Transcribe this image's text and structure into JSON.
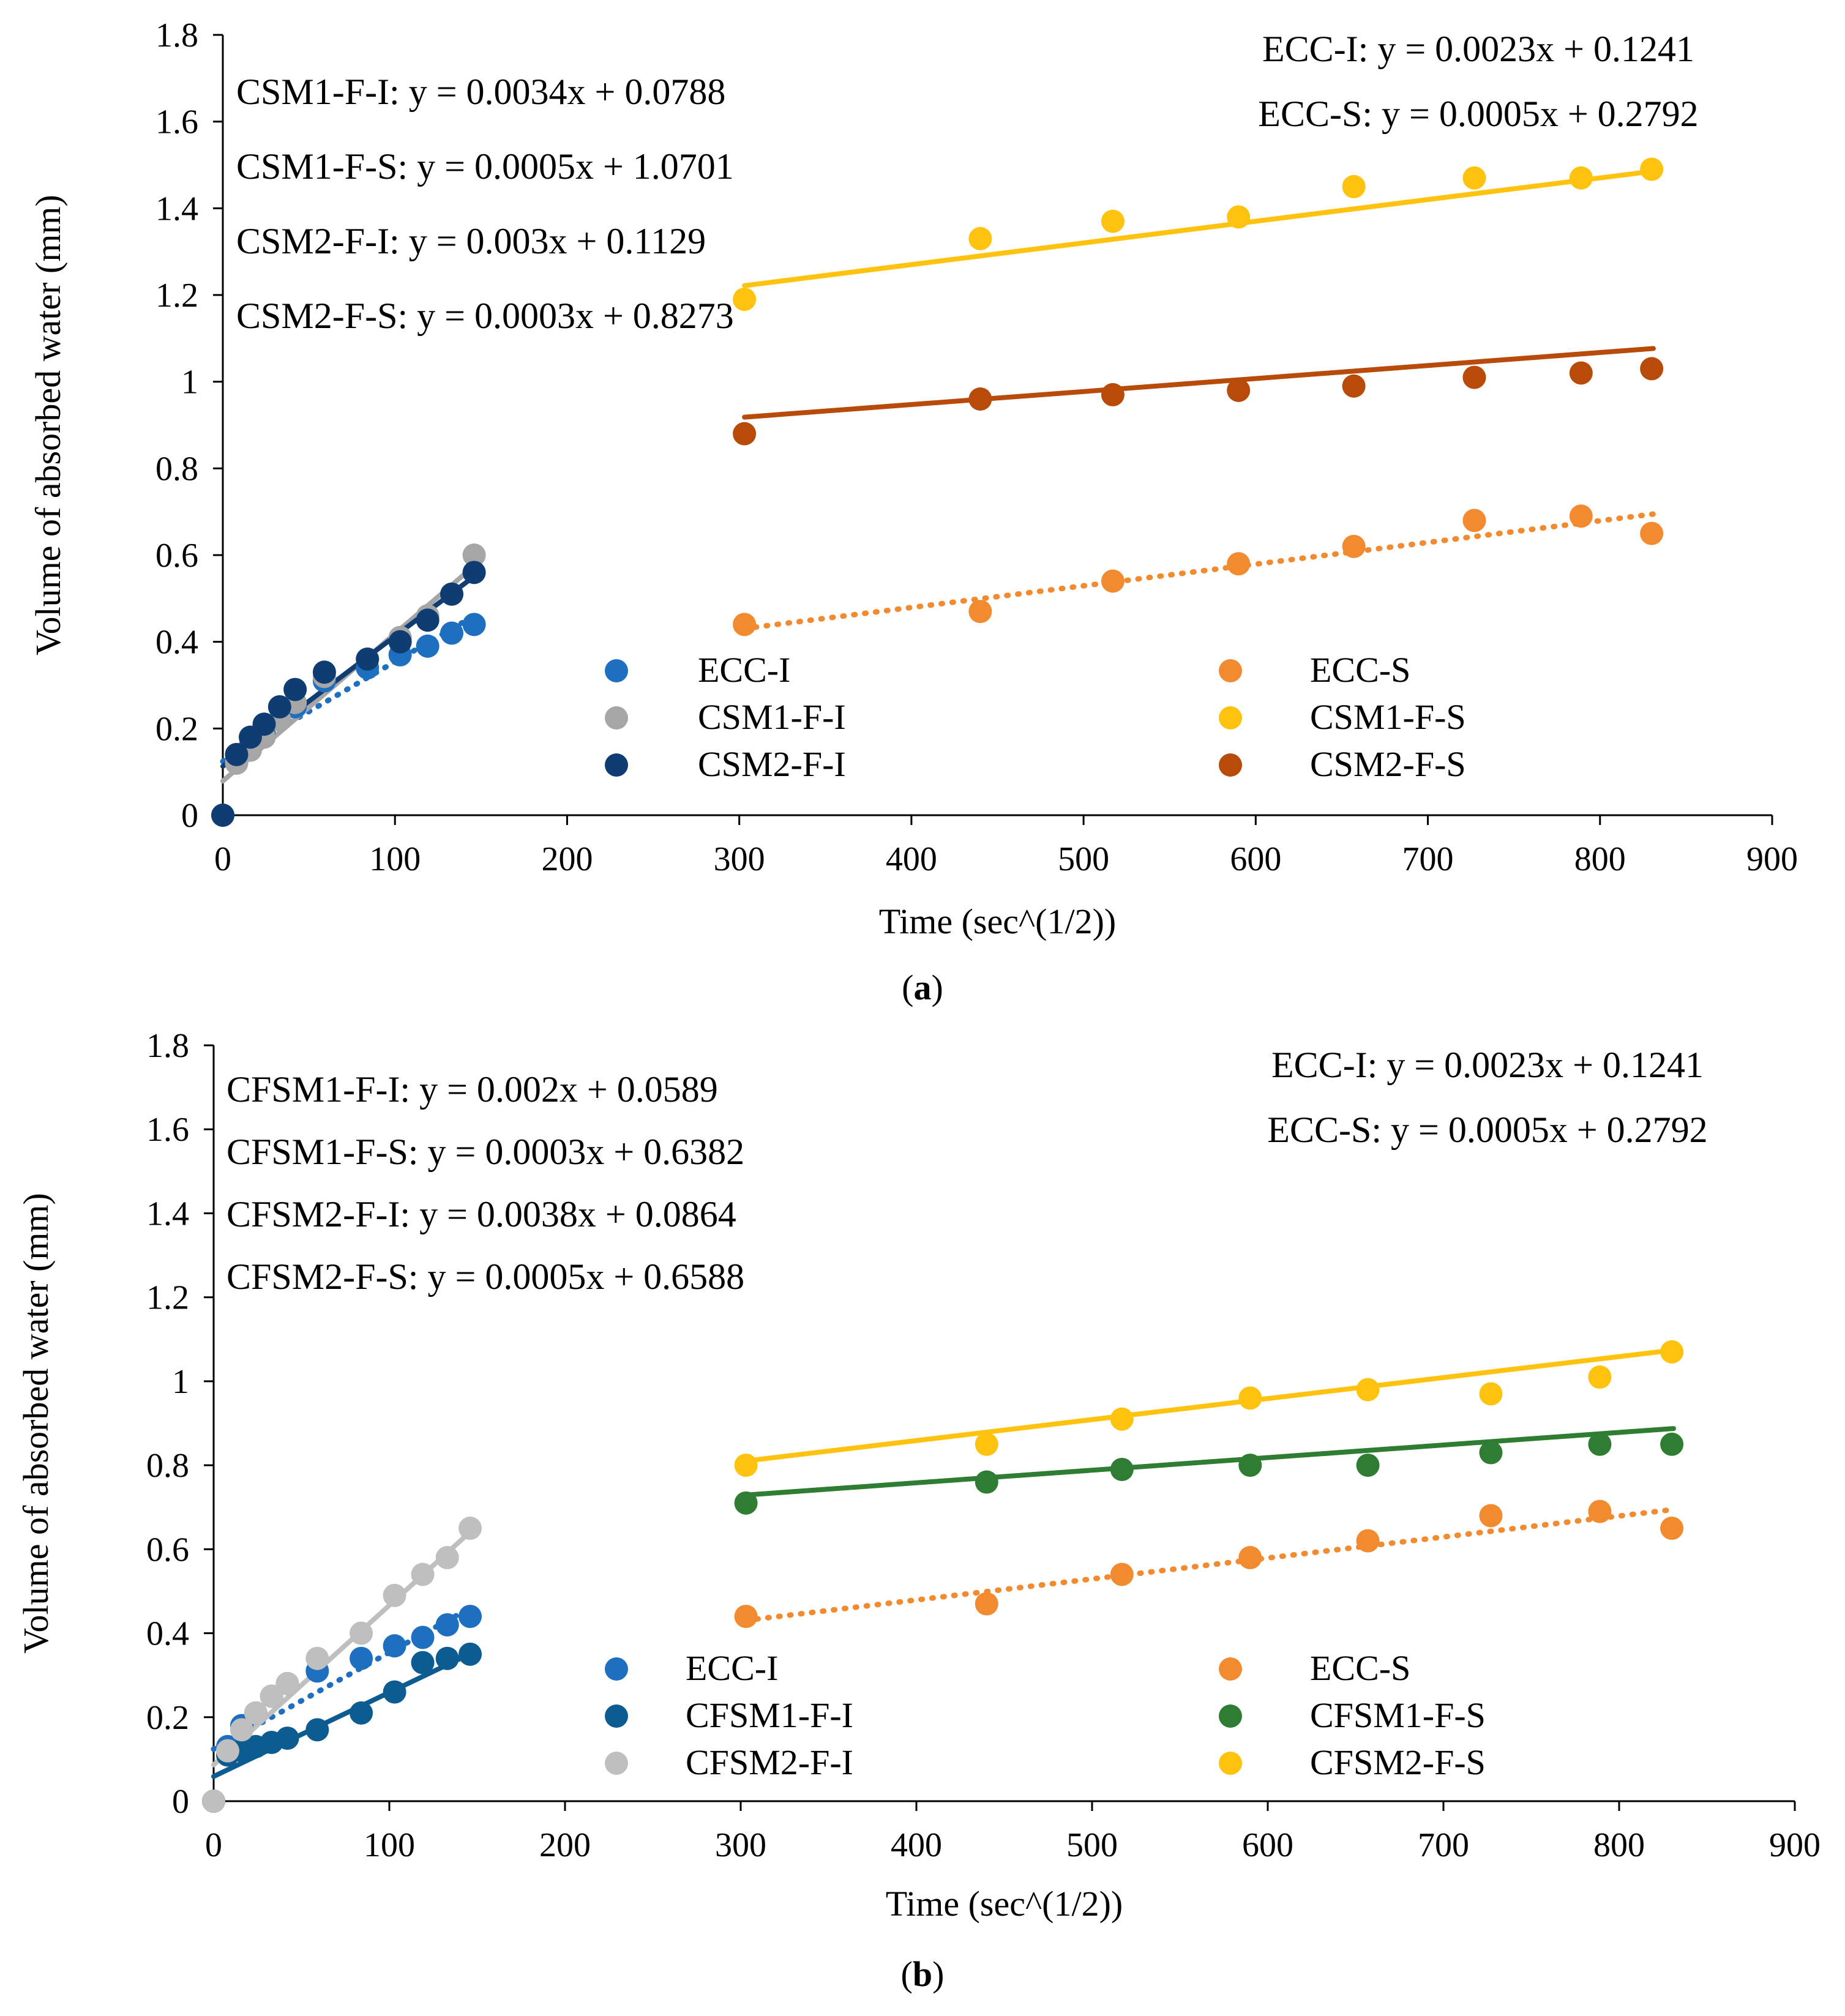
{
  "chart_data": [
    {
      "type": "scatter",
      "panel_label": "a",
      "title": "",
      "xlabel": "Time (sec^(1/2))",
      "ylabel": "Volume of absorbed water (mm)",
      "xlim": [
        0,
        900
      ],
      "ylim": [
        0,
        1.8
      ],
      "xticks": [
        "0",
        "100",
        "200",
        "300",
        "400",
        "500",
        "600",
        "700",
        "800",
        "900"
      ],
      "yticks": [
        "0",
        "0.2",
        "0.4",
        "0.6",
        "0.8",
        "1",
        "1.2",
        "1.4",
        "1.6",
        "1.8"
      ],
      "grid": false,
      "equations_left": [
        "CSM1-F-I: y = 0.0034x + 0.0788",
        "CSM1-F-S: y = 0.0005x + 1.0701",
        "CSM2-F-I: y = 0.003x + 0.1129",
        "CSM2-F-S: y = 0.0003x + 0.8273"
      ],
      "equations_right": [
        "ECC-I: y = 0.0023x + 0.1241",
        "ECC-S: y = 0.0005x + 0.2792"
      ],
      "legend_position": "bottom-right",
      "series": [
        {
          "name": "ECC-I",
          "color": "#1f6fc0",
          "trend": {
            "slope": 0.0023,
            "intercept": 0.1241,
            "style": "dotted",
            "x": [
              0,
              148
            ]
          },
          "points": [
            [
              0,
              0
            ],
            [
              8,
              0.13
            ],
            [
              16,
              0.16
            ],
            [
              24,
              0.19
            ],
            [
              33,
              0.22
            ],
            [
              42,
              0.25
            ],
            [
              59,
              0.31
            ],
            [
              84,
              0.34
            ],
            [
              103,
              0.37
            ],
            [
              119,
              0.39
            ],
            [
              133,
              0.42
            ],
            [
              146,
              0.44
            ]
          ]
        },
        {
          "name": "CSM1-F-I",
          "color": "#a6a6a6",
          "trend": {
            "slope": 0.0034,
            "intercept": 0.0788,
            "style": "solid",
            "x": [
              0,
              148
            ]
          },
          "points": [
            [
              0,
              0
            ],
            [
              8,
              0.12
            ],
            [
              16,
              0.15
            ],
            [
              24,
              0.18
            ],
            [
              33,
              0.22
            ],
            [
              42,
              0.26
            ],
            [
              59,
              0.32
            ],
            [
              84,
              0.36
            ],
            [
              103,
              0.41
            ],
            [
              119,
              0.46
            ],
            [
              133,
              0.51
            ],
            [
              146,
              0.6
            ]
          ]
        },
        {
          "name": "CSM2-F-I",
          "color": "#0f3d73",
          "trend": {
            "slope": 0.003,
            "intercept": 0.1129,
            "style": "solid",
            "x": [
              0,
              148
            ]
          },
          "points": [
            [
              0,
              0
            ],
            [
              8,
              0.14
            ],
            [
              16,
              0.18
            ],
            [
              24,
              0.21
            ],
            [
              33,
              0.25
            ],
            [
              42,
              0.29
            ],
            [
              59,
              0.33
            ],
            [
              84,
              0.36
            ],
            [
              103,
              0.4
            ],
            [
              119,
              0.45
            ],
            [
              133,
              0.51
            ],
            [
              146,
              0.56
            ]
          ]
        },
        {
          "name": "ECC-S",
          "color": "#f28a30",
          "trend": {
            "slope": 0.0005,
            "intercept": 0.2792,
            "style": "dotted",
            "x": [
              303,
              831
            ]
          },
          "points": [
            [
              303,
              0.44
            ],
            [
              440,
              0.47
            ],
            [
              517,
              0.54
            ],
            [
              590,
              0.58
            ],
            [
              657,
              0.62
            ],
            [
              727,
              0.68
            ],
            [
              789,
              0.69
            ],
            [
              830,
              0.65
            ]
          ]
        },
        {
          "name": "CSM1-F-S",
          "color": "#ffc20e",
          "trend": {
            "slope": 0.0005,
            "intercept": 1.0701,
            "style": "solid",
            "x": [
              303,
              831
            ]
          },
          "points": [
            [
              303,
              1.19
            ],
            [
              440,
              1.33
            ],
            [
              517,
              1.37
            ],
            [
              590,
              1.38
            ],
            [
              657,
              1.45
            ],
            [
              727,
              1.47
            ],
            [
              789,
              1.47
            ],
            [
              830,
              1.49
            ]
          ]
        },
        {
          "name": "CSM2-F-S",
          "color": "#b84a0a",
          "trend": {
            "slope": 0.0003,
            "intercept": 0.8273,
            "style": "solid",
            "x": [
              303,
              831
            ]
          },
          "points": [
            [
              303,
              0.88
            ],
            [
              440,
              0.96
            ],
            [
              517,
              0.97
            ],
            [
              590,
              0.98
            ],
            [
              657,
              0.99
            ],
            [
              727,
              1.01
            ],
            [
              789,
              1.02
            ],
            [
              830,
              1.03
            ]
          ]
        }
      ]
    },
    {
      "type": "scatter",
      "panel_label": "b",
      "title": "",
      "xlabel": "Time (sec^(1/2))",
      "ylabel": "Volume of absorbed water (mm)",
      "xlim": [
        0,
        900
      ],
      "ylim": [
        0,
        1.8
      ],
      "xticks": [
        "0",
        "100",
        "200",
        "300",
        "400",
        "500",
        "600",
        "700",
        "800",
        "900"
      ],
      "yticks": [
        "0",
        "0.2",
        "0.4",
        "0.6",
        "0.8",
        "1",
        "1.2",
        "1.4",
        "1.6",
        "1.8"
      ],
      "grid": false,
      "equations_left": [
        "CFSM1-F-I: y = 0.002x + 0.0589",
        "CFSM1-F-S: y = 0.0003x + 0.6382",
        "CFSM2-F-I: y = 0.0038x + 0.0864",
        "CFSM2-F-S: y = 0.0005x + 0.6588"
      ],
      "equations_right": [
        "ECC-I: y = 0.0023x + 0.1241",
        "ECC-S: y = 0.0005x + 0.2792"
      ],
      "legend_position": "bottom-right",
      "series": [
        {
          "name": "ECC-I",
          "color": "#1f6fc0",
          "trend": {
            "slope": 0.0023,
            "intercept": 0.1241,
            "style": "dotted",
            "x": [
              0,
              148
            ]
          },
          "points": [
            [
              0,
              0
            ],
            [
              8,
              0.13
            ],
            [
              16,
              0.18
            ],
            [
              24,
              0.21
            ],
            [
              33,
              0.25
            ],
            [
              42,
              0.28
            ],
            [
              59,
              0.31
            ],
            [
              84,
              0.34
            ],
            [
              103,
              0.37
            ],
            [
              119,
              0.39
            ],
            [
              133,
              0.42
            ],
            [
              146,
              0.44
            ]
          ]
        },
        {
          "name": "CFSM1-F-I",
          "color": "#0d5c91",
          "trend": {
            "slope": 0.002,
            "intercept": 0.0589,
            "style": "solid",
            "x": [
              0,
              148
            ]
          },
          "points": [
            [
              0,
              0
            ],
            [
              8,
              0.11
            ],
            [
              16,
              0.12
            ],
            [
              24,
              0.13
            ],
            [
              33,
              0.14
            ],
            [
              42,
              0.15
            ],
            [
              59,
              0.17
            ],
            [
              84,
              0.21
            ],
            [
              103,
              0.26
            ],
            [
              119,
              0.33
            ],
            [
              133,
              0.34
            ],
            [
              146,
              0.35
            ]
          ]
        },
        {
          "name": "CFSM2-F-I",
          "color": "#bfbfbf",
          "trend": {
            "slope": 0.0038,
            "intercept": 0.0864,
            "style": "solid",
            "x": [
              0,
              148
            ]
          },
          "points": [
            [
              0,
              0
            ],
            [
              8,
              0.12
            ],
            [
              16,
              0.17
            ],
            [
              24,
              0.21
            ],
            [
              33,
              0.25
            ],
            [
              42,
              0.28
            ],
            [
              59,
              0.34
            ],
            [
              84,
              0.4
            ],
            [
              103,
              0.49
            ],
            [
              119,
              0.54
            ],
            [
              133,
              0.58
            ],
            [
              146,
              0.65
            ]
          ]
        },
        {
          "name": "ECC-S",
          "color": "#f28a30",
          "trend": {
            "slope": 0.0005,
            "intercept": 0.2792,
            "style": "dotted",
            "x": [
              303,
              831
            ]
          },
          "points": [
            [
              303,
              0.44
            ],
            [
              440,
              0.47
            ],
            [
              517,
              0.54
            ],
            [
              590,
              0.58
            ],
            [
              657,
              0.62
            ],
            [
              727,
              0.68
            ],
            [
              789,
              0.69
            ],
            [
              830,
              0.65
            ]
          ]
        },
        {
          "name": "CFSM1-F-S",
          "color": "#2e7d32",
          "trend": {
            "slope": 0.0003,
            "intercept": 0.6382,
            "style": "solid",
            "x": [
              303,
              831
            ]
          },
          "points": [
            [
              303,
              0.71
            ],
            [
              440,
              0.76
            ],
            [
              517,
              0.79
            ],
            [
              590,
              0.8
            ],
            [
              657,
              0.8
            ],
            [
              727,
              0.83
            ],
            [
              789,
              0.85
            ],
            [
              830,
              0.85
            ]
          ]
        },
        {
          "name": "CFSM2-F-S",
          "color": "#ffc20e",
          "trend": {
            "slope": 0.0005,
            "intercept": 0.6588,
            "style": "solid",
            "x": [
              303,
              831
            ]
          },
          "points": [
            [
              303,
              0.8
            ],
            [
              440,
              0.85
            ],
            [
              517,
              0.91
            ],
            [
              590,
              0.96
            ],
            [
              657,
              0.98
            ],
            [
              727,
              0.97
            ],
            [
              789,
              1.01
            ],
            [
              830,
              1.07
            ]
          ]
        }
      ]
    }
  ]
}
